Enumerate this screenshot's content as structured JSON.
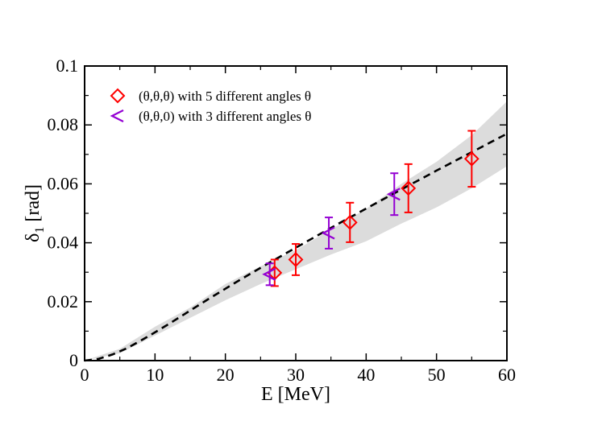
{
  "chart_data": {
    "type": "scatter",
    "xlabel": "E [MeV]",
    "ylabel_main": "δ",
    "ylabel_sub": "1",
    "ylabel_unit": "[rad]",
    "xlim": [
      0,
      60
    ],
    "ylim": [
      0,
      0.1
    ],
    "x_ticks": [
      0,
      10,
      20,
      30,
      40,
      50,
      60
    ],
    "y_ticks": [
      0,
      0.02,
      0.04,
      0.06,
      0.08,
      0.1
    ],
    "x_tick_labels": [
      "0",
      "10",
      "20",
      "30",
      "40",
      "50",
      "60"
    ],
    "y_tick_labels": [
      "0",
      "0.02",
      "0.04",
      "0.06",
      "0.08",
      "0.1"
    ],
    "legend_position": "top-left",
    "fit_curve": {
      "style": "dashed",
      "color": "#000000",
      "x": [
        0,
        2,
        4,
        6,
        8,
        10,
        12,
        14,
        16,
        18,
        20,
        22,
        24,
        26,
        28,
        30,
        32,
        34,
        36,
        38,
        40,
        42,
        44,
        46,
        48,
        50,
        52,
        54,
        56,
        58,
        60
      ],
      "y": [
        0,
        0.0006,
        0.0021,
        0.0042,
        0.0068,
        0.0096,
        0.0125,
        0.0155,
        0.0185,
        0.0215,
        0.0244,
        0.0273,
        0.0301,
        0.0329,
        0.0356,
        0.0383,
        0.041,
        0.0437,
        0.0464,
        0.049,
        0.0516,
        0.0542,
        0.0568,
        0.0594,
        0.0619,
        0.0645,
        0.067,
        0.0695,
        0.072,
        0.0745,
        0.077
      ]
    },
    "uncertainty_band": {
      "color": "#dcdcdc",
      "x": [
        0,
        5,
        10,
        15,
        20,
        25,
        30,
        35,
        40,
        45,
        50,
        55,
        60
      ],
      "lower": [
        0,
        0.0025,
        0.0085,
        0.0145,
        0.0205,
        0.026,
        0.031,
        0.036,
        0.0405,
        0.0465,
        0.052,
        0.0585,
        0.066
      ],
      "upper": [
        0,
        0.004,
        0.0115,
        0.018,
        0.026,
        0.032,
        0.0375,
        0.0445,
        0.0515,
        0.06,
        0.0675,
        0.0765,
        0.088
      ]
    },
    "series": [
      {
        "name": "(θ,θ,θ) with 5 different angles θ",
        "marker": "diamond",
        "color": "#ff0000",
        "x": [
          27,
          30,
          37.7,
          46,
          55
        ],
        "y": [
          0.0298,
          0.0343,
          0.0469,
          0.0585,
          0.0685
        ],
        "err": [
          0.0045,
          0.0053,
          0.0067,
          0.0082,
          0.0095
        ]
      },
      {
        "name": "(θ,θ,0) with 3 different angles θ",
        "marker": "triangle-left",
        "color": "#9400d3",
        "x": [
          26.3,
          34.7,
          44
        ],
        "y": [
          0.0293,
          0.0433,
          0.0565
        ],
        "err": [
          0.0037,
          0.0053,
          0.0071
        ]
      }
    ]
  }
}
